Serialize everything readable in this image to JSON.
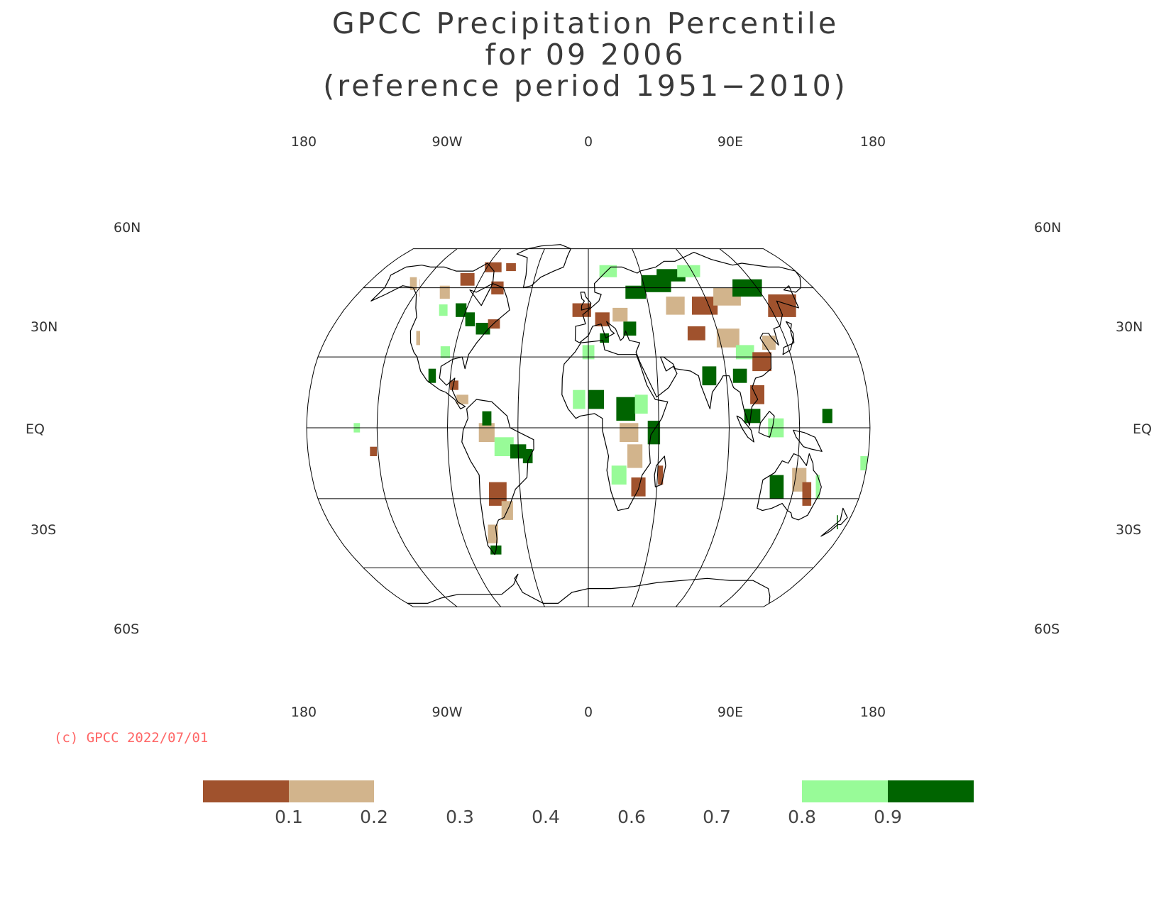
{
  "title": {
    "line1": "GPCC Precipitation Percentile",
    "line2": "for 09 2006",
    "line3": "(reference period 1951−2010)"
  },
  "map": {
    "projection": "Robinson",
    "lon_labels_top": [
      "180",
      "90W",
      "0",
      "90E",
      "180"
    ],
    "lon_labels_bottom": [
      "180",
      "90W",
      "0",
      "90E",
      "180"
    ],
    "lat_labels_left": [
      "60N",
      "30N",
      "EQ",
      "30S",
      "60S"
    ],
    "lat_labels_right": [
      "60N",
      "30N",
      "EQ",
      "30S",
      "60S"
    ],
    "anomaly_categories": {
      "very_dry": "#a0522d",
      "dry": "#d2b48c",
      "wet": "#98fb98",
      "very_wet": "#006400"
    }
  },
  "copyright": "(c) GPCC 2022/07/01",
  "legend": {
    "ticks": [
      "0.1",
      "0.2",
      "0.3",
      "0.4",
      "0.6",
      "0.7",
      "0.8",
      "0.9"
    ],
    "colors": [
      "#a0522d",
      "#d2b48c",
      "#ffffff",
      "#ffffff",
      "#ffffff",
      "#ffffff",
      "#98fb98",
      "#006400"
    ]
  }
}
